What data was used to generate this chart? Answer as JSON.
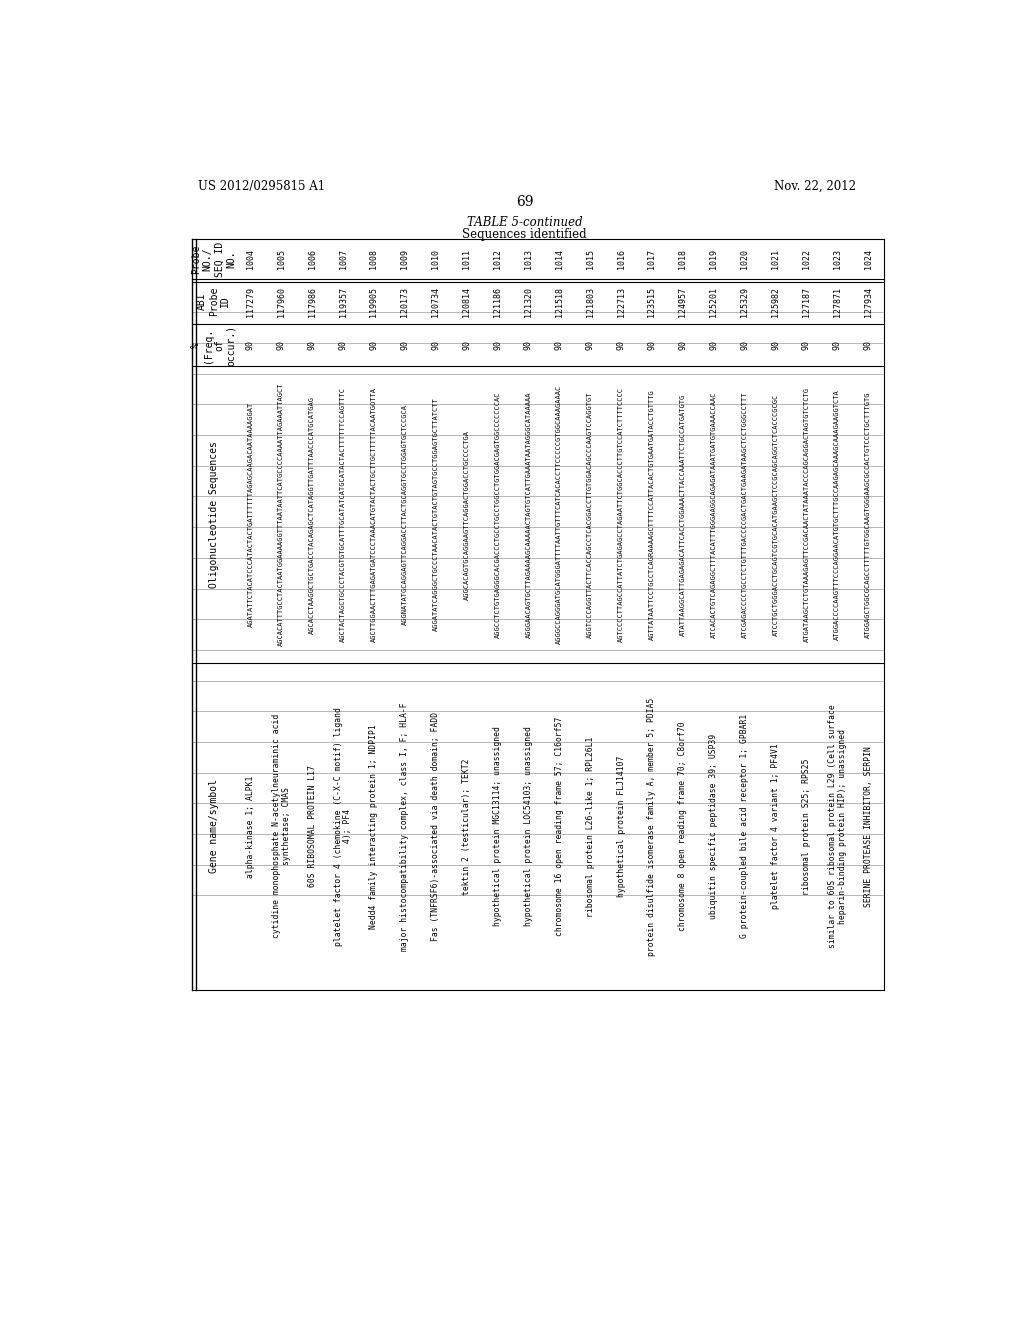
{
  "header_left": "US 2012/0295815 A1",
  "header_right": "Nov. 22, 2012",
  "page_number": "69",
  "table_title": "TABLE 5-continued",
  "col_headers": [
    "Probe\nNO./\nSEQ ID\nNO.",
    "ABI\nProbe\nID",
    "%\n(Freq.\nof\noccur.)",
    "Oligonucleotide Sequences",
    "Gene name/symbol"
  ],
  "rows": [
    [
      "1004",
      "117279",
      "90",
      "AGATATTCTACATCCCATACTACTGATTTTTTAGAGCAAGACAATAAAAGGAT",
      "alpha-kinase 1; ALPK1"
    ],
    [
      "1005",
      "117960",
      "90",
      "AGCACATTTGCCTACTAATGGAAAAGGTTTAATAATTCATGCCCCAAAATTAGAAATTAGCT",
      "cytidine monophosphate N-acetylneuraminic acid\nsynthetase; CMAS"
    ],
    [
      "1006",
      "117986",
      "90",
      "AGCACCTAAGGCTGCTGACCTACAGAGCTCATAGGTTGATTTAACCCATGCATGAG",
      "60S RIBOSOMAL PROTEIN L17"
    ],
    [
      "1007",
      "119357",
      "90",
      "AGCTACTAGCTGCCCTACGTGTGCATTTGCATATCATGCATACTACTTTTTTCCAGTTTC",
      "platelet factor 4 (chemokine (C-X-C motif) ligand\n4); PF4"
    ],
    [
      "1008",
      "119905",
      "90",
      "AGCTTGGAACTTTGAGATGATCCCTAAACATGTACTACTGCTTGCTTTTTACAATGOTTA",
      "Nedd4 family interacting protein 1; NDPIP1"
    ],
    [
      "1009",
      "120173",
      "90",
      "AGGNATATGCAGGAGTTCAGGACCTTACTGCAGGTGCCTGGAGTGCTCCGCA",
      "major histocompatibility complex, class I, F; HLA-F"
    ],
    [
      "1010",
      "120734",
      "90",
      "AGGATATCAGGGCTGCCCTAACATACTGTACTGTAGTGCCTGGAGTGCTTATCTT",
      "Fas (TNFRSF6)-associated via death domain; FADD"
    ],
    [
      "1011",
      "120814",
      "90",
      "AGGCACAGTGCAGGAAGTTCAGGACTGGACCTGCCCCTGA",
      "tektin 2 (testicular); TEKT2"
    ],
    [
      "1012",
      "121186",
      "90",
      "AGGCCTCTGTGAGGGCACGACCCTGCCTGCCTGGCCTGTGGACGAGTGGCCCCCCCAC",
      "hypothetical protein MGC13114; unassigned"
    ],
    [
      "1013",
      "121320",
      "90",
      "AGGGAACAGTGCTTAGAAAAGCAAAAACTAGTGTCATTGAAATAATAGGGCATAAAAA",
      "hypothetical protein LOC54103; unassigned"
    ],
    [
      "1014",
      "121518",
      "90",
      "AGGGCCAGGGATGCATGGGATTTTAATTGTTTCATCACACCTTCCCCCGTGGCAAAGAAAC",
      "chromosome 16 open reading frame 57; C16orf57"
    ],
    [
      "1015",
      "121803",
      "90",
      "AGGTCCCAGGTTACTTCACCAGCCTCACGGACCTTGTGGACAGCCCAAGTCCAGGTGT",
      "ribosomal protein L26-like 1; RPL26L1"
    ],
    [
      "1016",
      "122713",
      "90",
      "AGTCCCCTTAGCCATTATCTGAGAGCCTAGAATTCTGGCACCCTTGTCCATCTTTTCCCC",
      "hypothetical protein FLJ14107"
    ],
    [
      "1017",
      "123515",
      "90",
      "AGTTATAATTCCTGCCTCAGRAAAAGCTTTTCCATTACACTGTGAATGATACCTGTTTG",
      "protein disulfide isomerase family A, member 5; PDIA5"
    ],
    [
      "1018",
      "124957",
      "90",
      "ATATTAAGGCATTGAGAGACATTCACCTGGAAACTTACCAAATTCTGCCATGATGTG",
      "chromosome 8 open reading frame 70; C8orf70"
    ],
    [
      "1019",
      "125201",
      "90",
      "ATCACACTGTCAGAGGCTTTACATTTGGGAAGGCAGAGATAAATGATGTGAAACCAAC",
      "ubiquitin specific peptidase 39; USP39"
    ],
    [
      "1020",
      "125329",
      "90",
      "ATCGAGACCCCTGCCTCTGTTTGACCCCGACTGACTGAAGATAAGCTCCTGGGCCTTT",
      "G protein-coupled bile acid receptor 1; GPBAR1"
    ],
    [
      "1021",
      "125982",
      "90",
      "ATCCTGCTGGGACCTGCAGTCGTGCACATGAAGCTCCGCAGCAGGTCTCACCCGCGC",
      "platelet factor 4 variant 1; PF4V1"
    ],
    [
      "1022",
      "127187",
      "90",
      "ATGATAAGCTCTGTAAAGAGTTCCGACAACTATAAATACCCAGCAGGACTAGTGTCTCTG",
      "ribosomal protein S25; RPS25"
    ],
    [
      "1023",
      "127871",
      "90",
      "ATGGACCCCAAGTTTCCCAGGAACATGTGCTTTGCCAAGAGCAAAGCAAAGAAGGTCTA",
      "similar to 60S ribosomal protein L29 (Cell surface\nheparin-binding protein HIP); unassigned"
    ],
    [
      "1024",
      "127934",
      "90",
      "ATGGAGCTGGCGCAGCCTTTTTGTGGCAAGTGGGAAGCGCCACTGTCCCTGCTTTGTG",
      "SERINE PROTEASE INHIBITOR, SERPIN"
    ]
  ],
  "bg_color": "#ffffff",
  "text_color": "#000000",
  "line_color": "#000000"
}
